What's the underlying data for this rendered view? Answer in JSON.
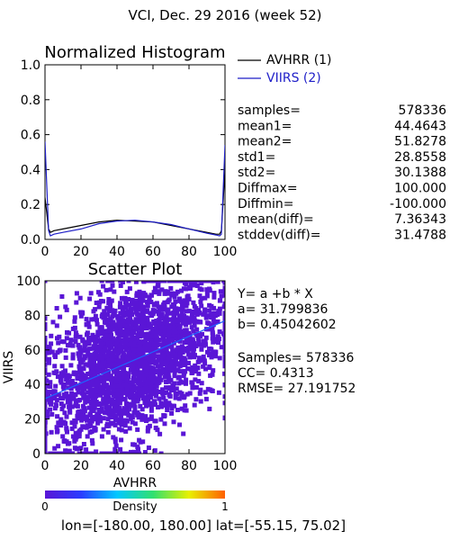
{
  "page": {
    "title": "VCI,  Dec. 29 2016 (week 52)",
    "footer": "lon=[-180.00, 180.00] lat=[-55.15, 75.02]"
  },
  "colors": {
    "avhrr": "#000000",
    "viirs": "#1f1fc8",
    "scatter_fill": "#5a16d6",
    "fit_line": "#1e64ff"
  },
  "chart_data": [
    {
      "type": "line",
      "title": "Normalized Histogram",
      "xlim": [
        0,
        100
      ],
      "ylim": [
        0,
        1
      ],
      "x_ticks": [
        "0",
        "20",
        "40",
        "60",
        "80",
        "100"
      ],
      "y_ticks": [
        "0.0",
        "0.2",
        "0.4",
        "0.6",
        "0.8",
        "1.0"
      ],
      "legend": {
        "position": "right",
        "entries": [
          "AVHRR (1)",
          "VIIRS (2)"
        ]
      },
      "x": [
        0,
        2,
        3,
        5,
        10,
        20,
        30,
        40,
        50,
        60,
        70,
        80,
        90,
        95,
        97,
        98,
        100
      ],
      "series": [
        {
          "name": "AVHRR (1)",
          "values": [
            0.24,
            0.06,
            0.04,
            0.05,
            0.06,
            0.08,
            0.1,
            0.11,
            0.105,
            0.1,
            0.08,
            0.06,
            0.04,
            0.03,
            0.03,
            0.05,
            0.4
          ]
        },
        {
          "name": "VIIRS (2)",
          "values": [
            0.56,
            0.05,
            0.02,
            0.03,
            0.04,
            0.06,
            0.09,
            0.105,
            0.11,
            0.1,
            0.085,
            0.06,
            0.035,
            0.025,
            0.02,
            0.03,
            0.54
          ]
        }
      ],
      "stats": [
        {
          "label": "samples=",
          "value": "578336"
        },
        {
          "label": "mean1=",
          "value": "44.4643"
        },
        {
          "label": "mean2=",
          "value": "51.8278"
        },
        {
          "label": "std1=",
          "value": "28.8558"
        },
        {
          "label": "std2=",
          "value": "30.1388"
        },
        {
          "label": "Diffmax=",
          "value": "100.000"
        },
        {
          "label": "Diffmin=",
          "value": "-100.000"
        },
        {
          "label": "mean(diff)=",
          "value": "7.36343"
        },
        {
          "label": "stddev(diff)=",
          "value": "31.4788"
        }
      ]
    },
    {
      "type": "scatter",
      "title": "Scatter Plot",
      "xlabel": "AVHRR",
      "ylabel": "VIIRS",
      "xlim": [
        0,
        100
      ],
      "ylim": [
        0,
        100
      ],
      "x_ticks": [
        "0",
        "20",
        "40",
        "60",
        "80",
        "100"
      ],
      "y_ticks": [
        "0",
        "20",
        "40",
        "60",
        "80",
        "100"
      ],
      "fit": {
        "a": 31.799836,
        "b": 0.45042602
      },
      "fit_lines": [
        "Y= a +b * X",
        "a= 31.799836",
        "b= 0.45042602"
      ],
      "stats_lines": [
        "Samples= 578336",
        "CC=  0.4313",
        "RMSE= 27.191752"
      ],
      "colorbar": {
        "label": "Density",
        "min_label": "0",
        "max_label": "1"
      }
    }
  ]
}
